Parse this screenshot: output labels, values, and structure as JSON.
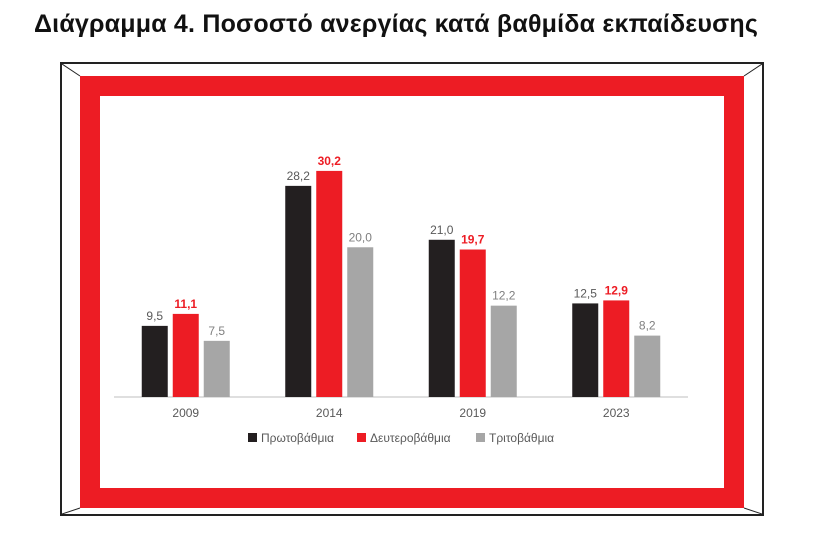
{
  "page": {
    "title": "Διάγραμμα 4. Ποσοστό ανεργίας κατά βαθμίδα εκπαίδευσης"
  },
  "colors": {
    "frame_red": "#ED1C24",
    "frame_line": "#222222",
    "axis": "#BFBFBF",
    "label_gray": "#595959"
  },
  "chart_data": {
    "type": "bar",
    "title": "",
    "xlabel": "",
    "ylabel": "",
    "ylim": [
      0,
      32
    ],
    "grid": false,
    "legend_position": "bottom",
    "categories": [
      "2009",
      "2014",
      "2019",
      "2023"
    ],
    "series": [
      {
        "name": "Πρωτοβάθμια",
        "color": "#231F20",
        "label_color": "#595959",
        "values": [
          9.5,
          28.2,
          21.0,
          12.5
        ],
        "labels": [
          "9,5",
          "28,2",
          "21,0",
          "12,5"
        ]
      },
      {
        "name": "Δευτεροβάθμια",
        "color": "#ED1C24",
        "label_color": "#ED1C24",
        "values": [
          11.1,
          30.2,
          19.7,
          12.9
        ],
        "labels": [
          "11,1",
          "30,2",
          "19,7",
          "12,9"
        ]
      },
      {
        "name": "Τριτοβάθμια",
        "color": "#A6A6A6",
        "label_color": "#7F7F7F",
        "values": [
          7.5,
          20.0,
          12.2,
          8.2
        ],
        "labels": [
          "7,5",
          "20,0",
          "12,2",
          "8,2"
        ]
      }
    ]
  }
}
